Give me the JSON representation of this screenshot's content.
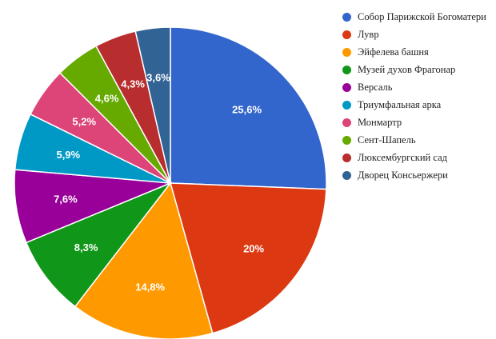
{
  "chart_data": {
    "type": "pie",
    "title": "",
    "legend_position": "right",
    "start_angle": "top",
    "direction": "clockwise",
    "slices": [
      {
        "label": "Собор Парижской Богоматери",
        "value": 25.6,
        "value_label": "25,6%",
        "color": "#3366cc"
      },
      {
        "label": "Лувр",
        "value": 20,
        "value_label": "20%",
        "color": "#dc3912"
      },
      {
        "label": "Эйфелева башня",
        "value": 14.8,
        "value_label": "14,8%",
        "color": "#ff9900"
      },
      {
        "label": "Музей духов Фрагонар",
        "value": 8.3,
        "value_label": "8,3%",
        "color": "#109618"
      },
      {
        "label": "Версаль",
        "value": 7.6,
        "value_label": "7,6%",
        "color": "#990099"
      },
      {
        "label": "Триумфальная арка",
        "value": 5.9,
        "value_label": "5,9%",
        "color": "#0099c6"
      },
      {
        "label": "Монмартр",
        "value": 5.2,
        "value_label": "5,2%",
        "color": "#dd4477"
      },
      {
        "label": "Сент-Шапель",
        "value": 4.6,
        "value_label": "4,6%",
        "color": "#66aa00"
      },
      {
        "label": "Люксембургский сад",
        "value": 4.3,
        "value_label": "4,3%",
        "color": "#b82e2e"
      },
      {
        "label": "Дворец Консьержери",
        "value": 3.6,
        "value_label": "3,6%",
        "color": "#316395"
      }
    ]
  }
}
